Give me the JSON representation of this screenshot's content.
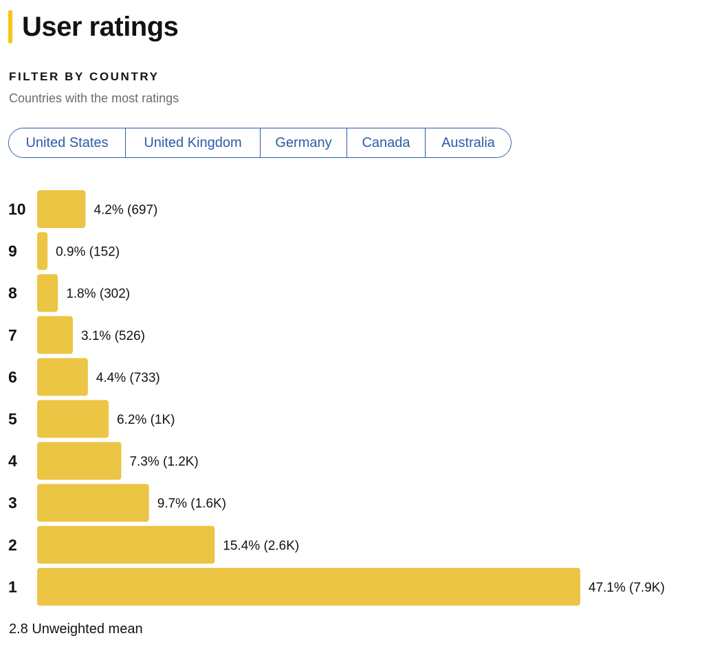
{
  "page": {
    "title": "User ratings",
    "filter_heading": "FILTER BY COUNTRY",
    "filter_subtitle": "Countries with the most ratings"
  },
  "countries": [
    {
      "label": "United States"
    },
    {
      "label": "United Kingdom"
    },
    {
      "label": "Germany"
    },
    {
      "label": "Canada"
    },
    {
      "label": "Australia"
    }
  ],
  "colors": {
    "accent": "#f5c518",
    "bar": "#ecc544",
    "chip_text": "#2c5ba7"
  },
  "chart_data": {
    "type": "bar",
    "orientation": "horizontal",
    "categories": [
      "10",
      "9",
      "8",
      "7",
      "6",
      "5",
      "4",
      "3",
      "2",
      "1"
    ],
    "values": [
      4.2,
      0.9,
      1.8,
      3.1,
      4.4,
      6.2,
      7.3,
      9.7,
      15.4,
      47.1
    ],
    "labels": [
      "4.2% (697)",
      "0.9% (152)",
      "1.8% (302)",
      "3.1% (526)",
      "4.4% (733)",
      "6.2% (1K)",
      "7.3% (1.2K)",
      "9.7% (1.6K)",
      "15.4% (2.6K)",
      "47.1% (7.9K)"
    ],
    "value_unit": "%",
    "grid": false,
    "legend": "none"
  },
  "summary": {
    "mean_text": "2.8 Unweighted mean"
  }
}
